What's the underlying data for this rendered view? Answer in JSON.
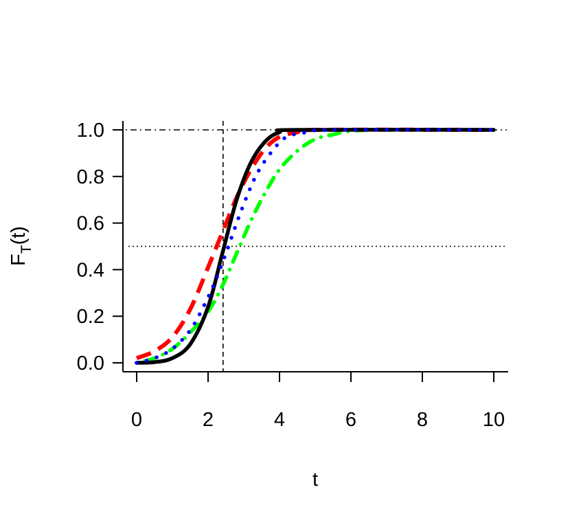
{
  "chart_data": {
    "type": "line",
    "title": "",
    "xlabel": "t",
    "ylabel": {
      "main": "F",
      "subscript": "T",
      "suffix": "(t)"
    },
    "xlim": [
      0,
      10
    ],
    "ylim": [
      0,
      1
    ],
    "x_ticks": [
      "0",
      "2",
      "4",
      "6",
      "8",
      "10"
    ],
    "y_ticks": [
      "0.0",
      "0.2",
      "0.4",
      "0.6",
      "0.8",
      "1.0"
    ],
    "reference_lines": {
      "vertical_x": 2.42,
      "horizontal_median": 0.5,
      "horizontal_upper": 1.0
    },
    "series": [
      {
        "color": "#000000",
        "style": "solid",
        "points": [
          [
            0,
            0
          ],
          [
            0.5,
            0.003
          ],
          [
            1,
            0.02
          ],
          [
            1.5,
            0.08
          ],
          [
            2,
            0.24
          ],
          [
            2.4,
            0.47
          ],
          [
            2.8,
            0.7
          ],
          [
            3.2,
            0.86
          ],
          [
            3.6,
            0.95
          ],
          [
            4,
            0.99
          ],
          [
            4.5,
            1.0
          ],
          [
            10,
            1.0
          ]
        ]
      },
      {
        "color": "#ff0000",
        "style": "dashed",
        "points": [
          [
            0,
            0.02
          ],
          [
            0.5,
            0.05
          ],
          [
            1,
            0.11
          ],
          [
            1.5,
            0.23
          ],
          [
            2,
            0.41
          ],
          [
            2.4,
            0.56
          ],
          [
            2.8,
            0.71
          ],
          [
            3.2,
            0.83
          ],
          [
            3.6,
            0.92
          ],
          [
            4,
            0.97
          ],
          [
            4.5,
            0.99
          ],
          [
            5,
            1.0
          ],
          [
            10,
            1.0
          ]
        ]
      },
      {
        "color": "#0000ff",
        "style": "dotted",
        "points": [
          [
            0,
            0.0
          ],
          [
            0.5,
            0.02
          ],
          [
            1,
            0.06
          ],
          [
            1.5,
            0.14
          ],
          [
            1.9,
            0.25
          ],
          [
            2.2,
            0.35
          ],
          [
            2.5,
            0.47
          ],
          [
            2.8,
            0.6
          ],
          [
            3.1,
            0.72
          ],
          [
            3.4,
            0.82
          ],
          [
            3.8,
            0.91
          ],
          [
            4.2,
            0.97
          ],
          [
            4.8,
            0.99
          ],
          [
            5.5,
            1.0
          ],
          [
            10,
            1.0
          ]
        ]
      },
      {
        "color": "#00ff00",
        "style": "dotdash",
        "points": [
          [
            0,
            0.0
          ],
          [
            0.5,
            0.02
          ],
          [
            1,
            0.06
          ],
          [
            1.5,
            0.13
          ],
          [
            2,
            0.22
          ],
          [
            2.4,
            0.33
          ],
          [
            2.8,
            0.47
          ],
          [
            3.2,
            0.61
          ],
          [
            3.6,
            0.73
          ],
          [
            4,
            0.83
          ],
          [
            4.5,
            0.91
          ],
          [
            5,
            0.96
          ],
          [
            5.5,
            0.98
          ],
          [
            6,
            0.995
          ],
          [
            7,
            1.0
          ],
          [
            10,
            1.0
          ]
        ]
      }
    ]
  }
}
